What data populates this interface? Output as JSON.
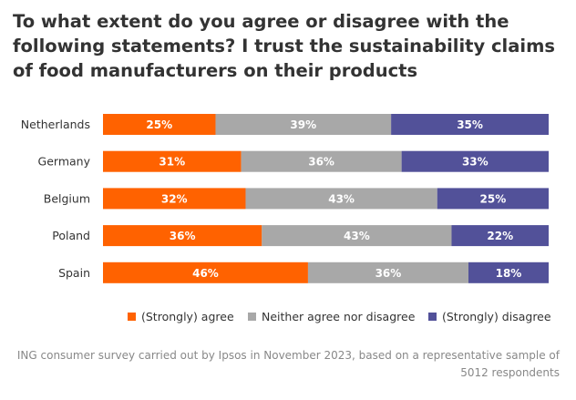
{
  "title": "To what extent do you agree or disagree with the following statements? I trust the sustainability claims of food manufacturers on their products",
  "footnote": "ING consumer survey carried out by Ipsos in November 2023, based on a representative sample of 5012 respondents",
  "colors": {
    "agree": "#ff6200",
    "neither": "#a8a8a8",
    "disagree": "#525199"
  },
  "chart_data": {
    "type": "bar",
    "orientation": "horizontal",
    "stacked": true,
    "categories": [
      "Netherlands",
      "Germany",
      "Belgium",
      "Poland",
      "Spain"
    ],
    "series": [
      {
        "name": "(Strongly) agree",
        "values": [
          25,
          31,
          32,
          36,
          46
        ],
        "labels": [
          "25%",
          "31%",
          "32%",
          "36%",
          "46%"
        ]
      },
      {
        "name": "Neither agree nor disagree",
        "values": [
          39,
          36,
          43,
          43,
          36
        ],
        "labels": [
          "39%",
          "36%",
          "43%",
          "43%",
          "36%"
        ]
      },
      {
        "name": "(Strongly) disagree",
        "values": [
          35,
          33,
          25,
          22,
          18
        ],
        "labels": [
          "35%",
          "33%",
          "25%",
          "22%",
          "18%"
        ]
      }
    ],
    "title": "To what extent do you agree or disagree with the following statements? I trust the sustainability claims of food manufacturers on their products",
    "xlabel": "",
    "ylabel": "",
    "xlim": [
      0,
      100
    ],
    "grid": false,
    "legend": "bottom"
  }
}
